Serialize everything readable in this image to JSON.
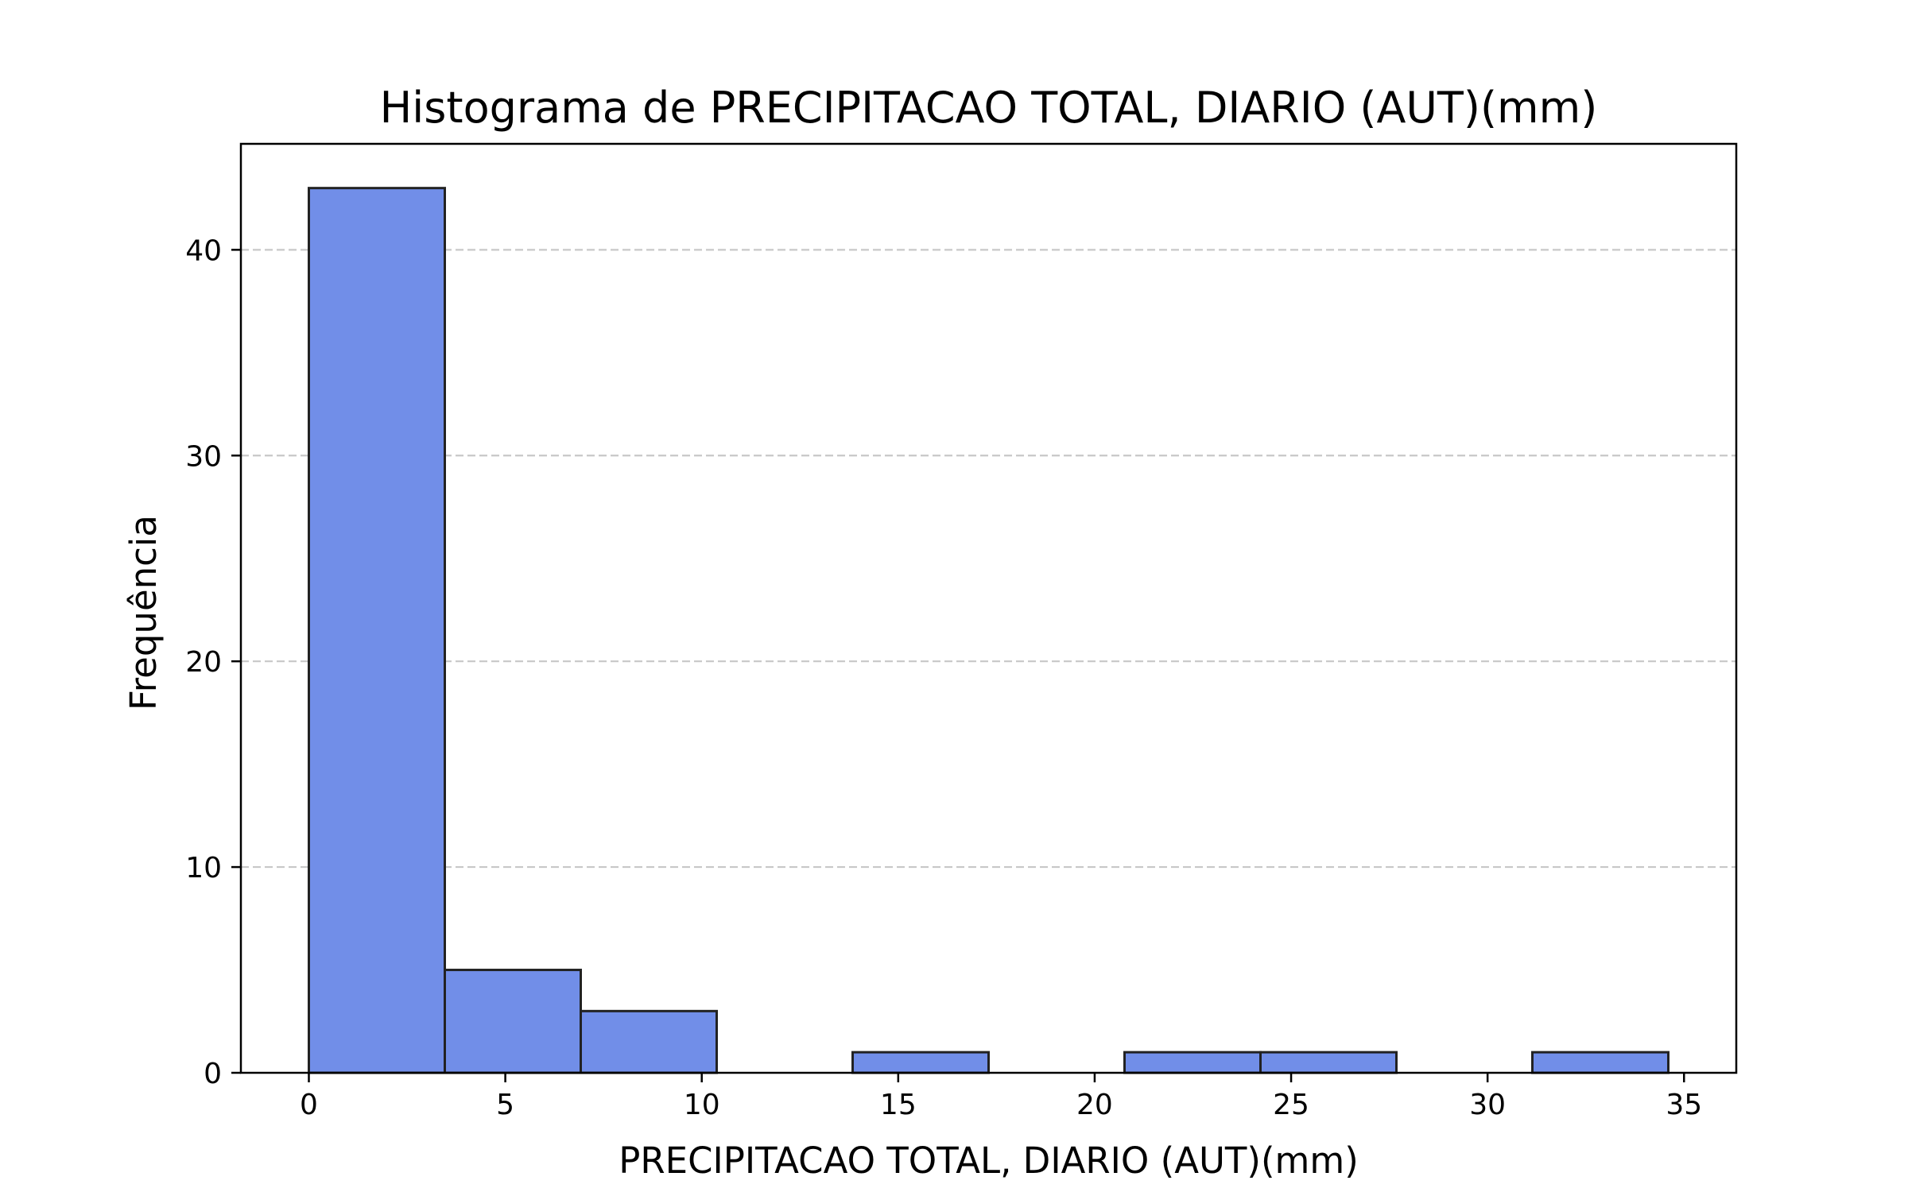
{
  "chart_data": {
    "type": "bar",
    "title": "Histograma de PRECIPITACAO TOTAL, DIARIO (AUT)(mm)",
    "xlabel": "PRECIPITACAO TOTAL, DIARIO (AUT)(mm)",
    "ylabel": "Frequência",
    "xlim": [
      -1.73,
      36.33
    ],
    "ylim": [
      0,
      45.15
    ],
    "x_ticks": [
      0,
      5,
      10,
      15,
      20,
      25,
      30,
      35
    ],
    "y_ticks": [
      0,
      10,
      20,
      30,
      40
    ],
    "bin_edges": [
      0,
      3.46,
      6.92,
      10.38,
      13.84,
      17.3,
      20.76,
      24.22,
      27.68,
      31.14,
      34.6
    ],
    "values": [
      43,
      5,
      3,
      0,
      1,
      0,
      1,
      1,
      0,
      1
    ],
    "grid": {
      "axis": "y",
      "style": "dashed"
    },
    "colors": {
      "bar_fill": "#718ee8",
      "bar_edge": "#222222",
      "grid": "#c8c8c8",
      "axis": "#000000"
    }
  }
}
